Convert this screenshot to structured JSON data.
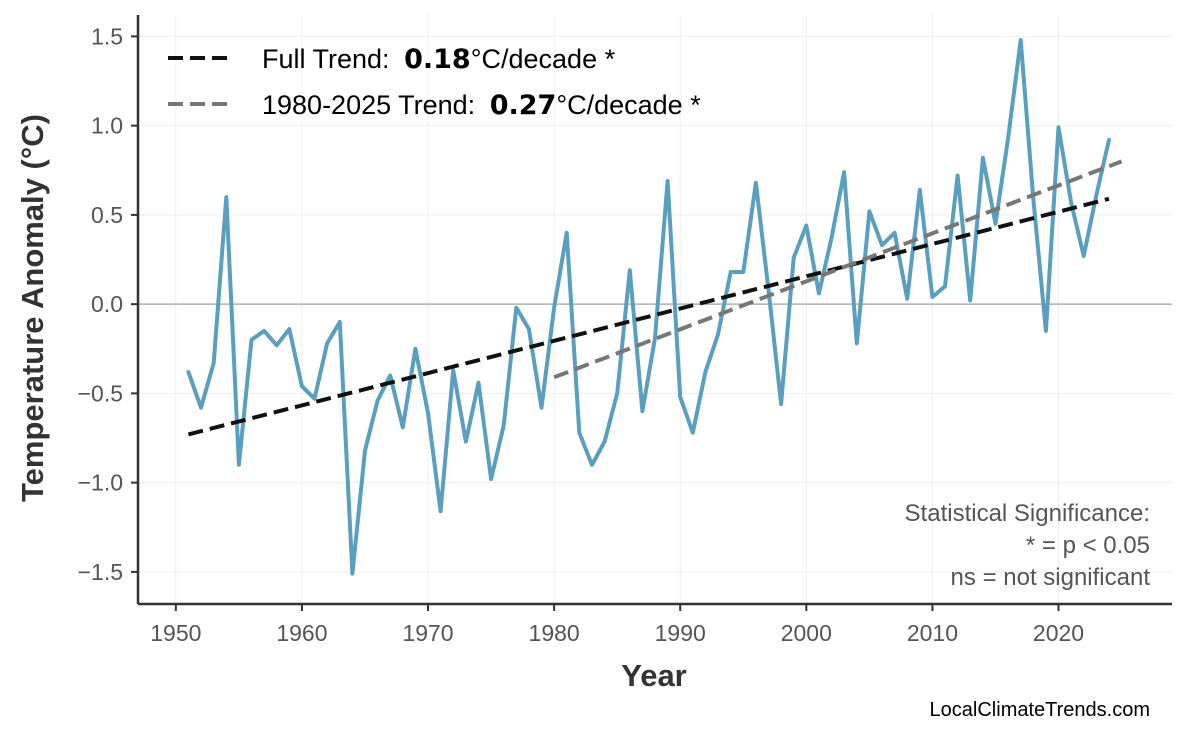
{
  "chart_data": {
    "type": "line",
    "xlabel": "Year",
    "ylabel": "Temperature Anomaly (°C)",
    "xlim": [
      1947,
      2029
    ],
    "ylim": [
      -1.68,
      1.62
    ],
    "x_ticks": [
      1950,
      1960,
      1970,
      1980,
      1990,
      2000,
      2010,
      2020
    ],
    "y_ticks": [
      -1.5,
      -1.0,
      -0.5,
      0.0,
      0.5,
      1.0,
      1.5
    ],
    "y_tick_labels": [
      "−1.5",
      "−1.0",
      "−0.5",
      "0.0",
      "0.5",
      "1.0",
      "1.5"
    ],
    "grid": true,
    "zero_line": true,
    "legend_position": "top-left",
    "series": [
      {
        "kind": "anomaly",
        "color": "#5a9fbf",
        "x": [
          1951,
          1952,
          1953,
          1954,
          1955,
          1956,
          1957,
          1958,
          1959,
          1960,
          1961,
          1962,
          1963,
          1964,
          1965,
          1966,
          1967,
          1968,
          1969,
          1970,
          1971,
          1972,
          1973,
          1974,
          1975,
          1976,
          1977,
          1978,
          1979,
          1980,
          1981,
          1982,
          1983,
          1984,
          1985,
          1986,
          1987,
          1988,
          1989,
          1990,
          1991,
          1992,
          1993,
          1994,
          1995,
          1996,
          1997,
          1998,
          1999,
          2000,
          2001,
          2002,
          2003,
          2004,
          2005,
          2006,
          2007,
          2008,
          2009,
          2010,
          2011,
          2012,
          2013,
          2014,
          2015,
          2016,
          2017,
          2018,
          2019,
          2020,
          2021,
          2022,
          2023,
          2024
        ],
        "y": [
          -0.38,
          -0.58,
          -0.33,
          0.6,
          -0.9,
          -0.2,
          -0.15,
          -0.23,
          -0.14,
          -0.46,
          -0.53,
          -0.22,
          -0.1,
          -1.51,
          -0.82,
          -0.54,
          -0.4,
          -0.69,
          -0.25,
          -0.61,
          -1.16,
          -0.37,
          -0.77,
          -0.44,
          -0.98,
          -0.68,
          -0.02,
          -0.14,
          -0.58,
          -0.02,
          0.4,
          -0.72,
          -0.9,
          -0.77,
          -0.5,
          0.19,
          -0.6,
          -0.19,
          0.69,
          -0.52,
          -0.72,
          -0.38,
          -0.17,
          0.18,
          0.18,
          0.68,
          0.08,
          -0.56,
          0.26,
          0.44,
          0.06,
          0.37,
          0.74,
          -0.22,
          0.52,
          0.33,
          0.4,
          0.03,
          0.64,
          0.04,
          0.1,
          0.72,
          0.02,
          0.82,
          0.45,
          0.93,
          1.48,
          0.59,
          -0.15,
          0.99,
          0.57,
          0.27,
          0.61,
          0.92
        ]
      },
      {
        "kind": "full-trend",
        "name": "Full Trend:",
        "value_label": "0.18",
        "unit_label": "°C/decade *",
        "color": "#111111",
        "x": [
          1951,
          2024
        ],
        "y": [
          -0.73,
          0.59
        ]
      },
      {
        "kind": "recent-trend",
        "name": "1980-2025 Trend:",
        "value_label": "0.27",
        "unit_label": "°C/decade *",
        "color": "#777777",
        "x": [
          1980,
          2025
        ],
        "y": [
          -0.41,
          0.8
        ]
      }
    ],
    "annotation": {
      "lines": [
        "Statistical Significance:",
        "* = p < 0.05",
        "ns = not significant"
      ],
      "position": "bottom-right"
    }
  },
  "source": "LocalClimateTrends.com"
}
